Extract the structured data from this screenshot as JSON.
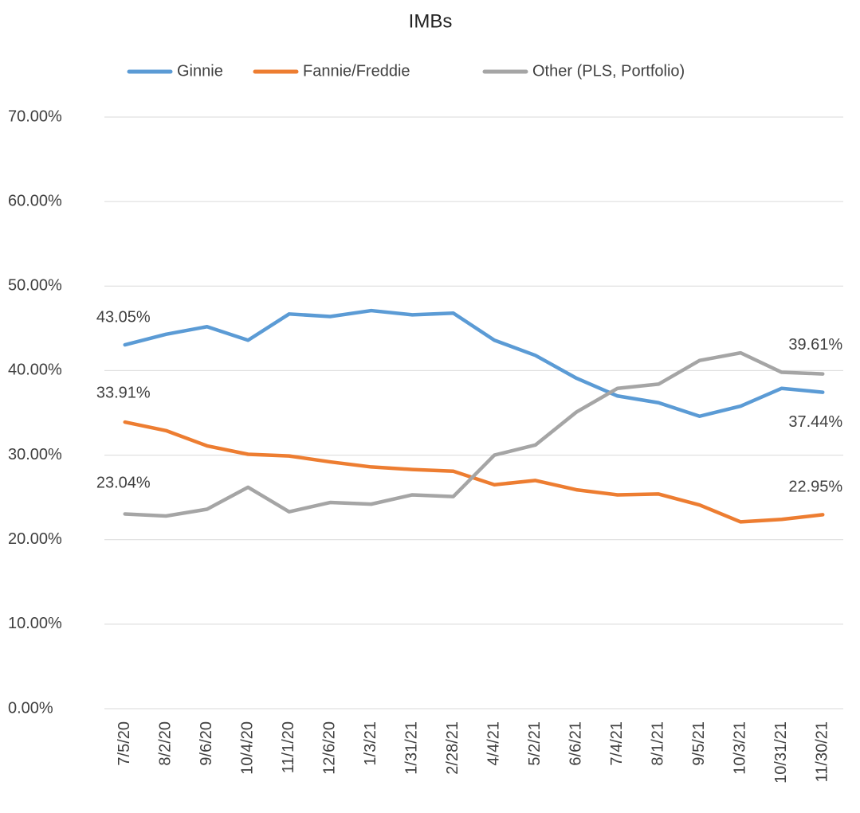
{
  "chart_data": {
    "type": "line",
    "title": "IMBs",
    "categories": [
      "7/5/20",
      "8/2/20",
      "9/6/20",
      "10/4/20",
      "11/1/20",
      "12/6/20",
      "1/3/21",
      "1/31/21",
      "2/28/21",
      "4/4/21",
      "5/2/21",
      "6/6/21",
      "7/4/21",
      "8/1/21",
      "9/5/21",
      "10/3/21",
      "10/31/21",
      "11/30/21"
    ],
    "series": [
      {
        "name": "Ginnie",
        "color": "#5b9bd5",
        "values": [
          43.05,
          44.3,
          45.2,
          43.6,
          46.7,
          46.4,
          47.1,
          46.6,
          46.8,
          43.6,
          41.8,
          39.1,
          37.0,
          36.2,
          34.6,
          35.8,
          37.9,
          37.44
        ],
        "value_labels": [
          "43.05%",
          null,
          null,
          null,
          null,
          null,
          null,
          null,
          null,
          null,
          null,
          null,
          null,
          null,
          null,
          null,
          null,
          "37.44%"
        ]
      },
      {
        "name": "Fannie/Freddie",
        "color": "#ed7d31",
        "values": [
          33.91,
          32.9,
          31.1,
          30.1,
          29.9,
          29.2,
          28.6,
          28.3,
          28.1,
          26.5,
          27.0,
          25.9,
          25.3,
          25.4,
          24.1,
          22.1,
          22.4,
          22.95
        ],
        "value_labels": [
          "33.91%",
          null,
          null,
          null,
          null,
          null,
          null,
          null,
          null,
          null,
          null,
          null,
          null,
          null,
          null,
          null,
          null,
          "22.95%"
        ]
      },
      {
        "name": "Other (PLS, Portfolio)",
        "color": "#a5a5a5",
        "values": [
          23.04,
          22.8,
          23.6,
          26.2,
          23.3,
          24.4,
          24.2,
          25.3,
          25.1,
          30.0,
          31.2,
          35.1,
          37.9,
          38.4,
          41.2,
          42.1,
          39.8,
          39.61
        ],
        "value_labels": [
          "23.04%",
          null,
          null,
          null,
          null,
          null,
          null,
          null,
          null,
          null,
          null,
          null,
          null,
          null,
          null,
          null,
          null,
          "39.61%"
        ]
      }
    ],
    "ylim": [
      0,
      70
    ],
    "yticks": [
      {
        "value": 0,
        "label": "0.00%"
      },
      {
        "value": 10,
        "label": "10.00%"
      },
      {
        "value": 20,
        "label": "20.00%"
      },
      {
        "value": 30,
        "label": "30.00%"
      },
      {
        "value": 40,
        "label": "40.00%"
      },
      {
        "value": 50,
        "label": "50.00%"
      },
      {
        "value": 60,
        "label": "60.00%"
      },
      {
        "value": 70,
        "label": "70.00%"
      }
    ],
    "grid": true,
    "legend": "top"
  }
}
